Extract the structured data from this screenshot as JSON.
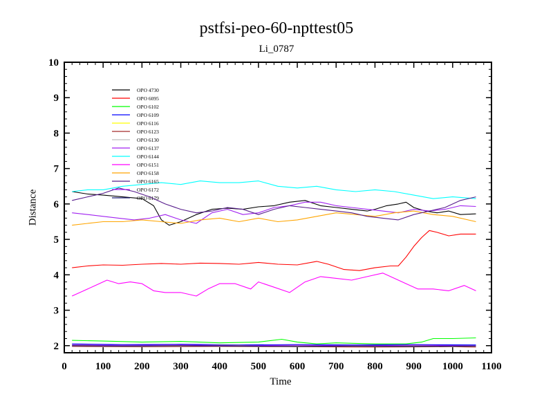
{
  "chart_data": {
    "type": "line",
    "title": "pstfsi-peo-60-npttest05",
    "subtitle": "Li_0787",
    "xlabel": "Time",
    "ylabel": "Distance",
    "xlim": [
      0,
      1100
    ],
    "ylim": [
      1.8,
      10
    ],
    "xticks": [
      0,
      100,
      200,
      300,
      400,
      500,
      600,
      700,
      800,
      900,
      1000,
      1100
    ],
    "yticks": [
      2,
      3,
      4,
      5,
      6,
      7,
      8,
      9,
      10
    ],
    "grid": false,
    "legend_position": "top-left",
    "series": [
      {
        "name": "OPO 4730",
        "color": "#000000",
        "x": [
          20,
          60,
          100,
          150,
          200,
          230,
          250,
          270,
          300,
          340,
          380,
          420,
          460,
          500,
          540,
          580,
          620,
          660,
          700,
          740,
          780,
          800,
          830,
          860,
          880,
          900,
          930,
          960,
          990,
          1020,
          1060
        ],
        "y": [
          6.35,
          6.28,
          6.25,
          6.2,
          6.15,
          5.95,
          5.55,
          5.4,
          5.5,
          5.7,
          5.85,
          5.88,
          5.85,
          5.92,
          5.95,
          6.05,
          6.1,
          5.95,
          5.9,
          5.85,
          5.8,
          5.85,
          5.95,
          6.0,
          6.05,
          5.9,
          5.8,
          5.75,
          5.8,
          5.7,
          5.72
        ]
      },
      {
        "name": "OPO 6095",
        "color": "#ff0000",
        "x": [
          20,
          60,
          100,
          150,
          200,
          250,
          300,
          350,
          400,
          450,
          500,
          550,
          600,
          650,
          680,
          720,
          760,
          800,
          840,
          860,
          880,
          900,
          920,
          940,
          960,
          990,
          1020,
          1060
        ],
        "y": [
          4.2,
          4.25,
          4.28,
          4.27,
          4.3,
          4.32,
          4.3,
          4.33,
          4.32,
          4.3,
          4.35,
          4.3,
          4.28,
          4.38,
          4.3,
          4.15,
          4.12,
          4.2,
          4.25,
          4.25,
          4.5,
          4.8,
          5.05,
          5.25,
          5.2,
          5.1,
          5.15,
          5.15
        ]
      },
      {
        "name": "OPO 6102",
        "color": "#00ff00",
        "x": [
          20,
          100,
          200,
          300,
          400,
          500,
          560,
          600,
          650,
          700,
          800,
          880,
          920,
          950,
          1000,
          1060
        ],
        "y": [
          2.15,
          2.13,
          2.1,
          2.12,
          2.08,
          2.1,
          2.18,
          2.1,
          2.05,
          2.08,
          2.05,
          2.05,
          2.1,
          2.2,
          2.2,
          2.22
        ]
      },
      {
        "name": "OPO 6109",
        "color": "#0000ff",
        "x": [
          20,
          150,
          300,
          450,
          600,
          750,
          900,
          1060
        ],
        "y": [
          2.05,
          2.03,
          2.04,
          2.02,
          2.03,
          2.02,
          2.03,
          2.02
        ]
      },
      {
        "name": "OPO 6116",
        "color": "#ffff00",
        "x": [
          20,
          200,
          400,
          600,
          800,
          1000,
          1060
        ],
        "y": [
          2.02,
          2.0,
          2.01,
          1.99,
          2.0,
          2.0,
          1.99
        ]
      },
      {
        "name": "OPO 6123",
        "color": "#a52a2a",
        "x": [
          20,
          200,
          400,
          600,
          800,
          1000,
          1060
        ],
        "y": [
          1.98,
          1.97,
          1.98,
          1.97,
          1.96,
          1.97,
          1.96
        ]
      },
      {
        "name": "OPO 6130",
        "color": "#bebebe",
        "x": [
          20,
          200,
          400,
          600,
          800,
          1000,
          1060
        ],
        "y": [
          2.0,
          1.99,
          2.0,
          1.98,
          1.99,
          1.98,
          1.99
        ]
      },
      {
        "name": "OPO 6137",
        "color": "#a020f0",
        "x": [
          20,
          60,
          100,
          140,
          180,
          220,
          260,
          300,
          340,
          380,
          420,
          460,
          500,
          540,
          580,
          620,
          660,
          700,
          740,
          780,
          820,
          860,
          900,
          940,
          980,
          1020,
          1060
        ],
        "y": [
          5.75,
          5.7,
          5.65,
          5.6,
          5.55,
          5.6,
          5.7,
          5.55,
          5.45,
          5.75,
          5.85,
          5.7,
          5.75,
          5.9,
          5.95,
          6.05,
          6.05,
          5.95,
          5.9,
          5.85,
          5.8,
          5.75,
          5.85,
          5.8,
          5.85,
          5.95,
          5.93
        ]
      },
      {
        "name": "OPO 6144",
        "color": "#00ffff",
        "x": [
          20,
          60,
          100,
          150,
          200,
          250,
          300,
          350,
          400,
          450,
          500,
          550,
          600,
          650,
          700,
          750,
          800,
          850,
          900,
          950,
          1000,
          1060
        ],
        "y": [
          6.35,
          6.4,
          6.4,
          6.5,
          6.55,
          6.6,
          6.55,
          6.65,
          6.6,
          6.6,
          6.65,
          6.5,
          6.45,
          6.5,
          6.4,
          6.35,
          6.4,
          6.35,
          6.25,
          6.15,
          6.2,
          6.15
        ]
      },
      {
        "name": "OPO 6151",
        "color": "#ff00ff",
        "x": [
          20,
          50,
          80,
          110,
          140,
          170,
          200,
          230,
          260,
          300,
          340,
          370,
          400,
          440,
          480,
          500,
          540,
          580,
          620,
          660,
          700,
          740,
          780,
          820,
          850,
          880,
          910,
          950,
          990,
          1030,
          1060
        ],
        "y": [
          3.4,
          3.55,
          3.7,
          3.85,
          3.75,
          3.8,
          3.75,
          3.55,
          3.5,
          3.5,
          3.4,
          3.6,
          3.75,
          3.75,
          3.6,
          3.8,
          3.65,
          3.5,
          3.8,
          3.95,
          3.9,
          3.85,
          3.95,
          4.05,
          3.9,
          3.75,
          3.6,
          3.6,
          3.55,
          3.7,
          3.55
        ]
      },
      {
        "name": "OPO 6158",
        "color": "#ffa500",
        "x": [
          20,
          60,
          100,
          150,
          200,
          250,
          300,
          350,
          400,
          450,
          500,
          550,
          600,
          650,
          700,
          750,
          800,
          850,
          900,
          950,
          1000,
          1060
        ],
        "y": [
          5.4,
          5.45,
          5.5,
          5.5,
          5.55,
          5.5,
          5.45,
          5.55,
          5.6,
          5.5,
          5.6,
          5.5,
          5.55,
          5.65,
          5.75,
          5.7,
          5.65,
          5.75,
          5.8,
          5.7,
          5.65,
          5.5
        ]
      },
      {
        "name": "OPO 6165",
        "color": "#551a8b",
        "x": [
          20,
          60,
          100,
          140,
          180,
          220,
          260,
          300,
          340,
          380,
          420,
          460,
          500,
          540,
          580,
          620,
          660,
          700,
          740,
          780,
          820,
          860,
          900,
          940,
          980,
          1020,
          1060
        ],
        "y": [
          6.1,
          6.2,
          6.3,
          6.45,
          6.35,
          6.2,
          6.0,
          5.85,
          5.75,
          5.8,
          5.9,
          5.85,
          5.7,
          5.85,
          5.95,
          5.9,
          5.85,
          5.8,
          5.75,
          5.65,
          5.6,
          5.55,
          5.7,
          5.8,
          5.9,
          6.1,
          6.2
        ]
      },
      {
        "name": "OPO 6172",
        "color": "#a020f0",
        "x": [
          20,
          150,
          300,
          450,
          600,
          750,
          900,
          1060
        ],
        "y": [
          2.02,
          2.01,
          2.02,
          2.0,
          2.01,
          2.0,
          2.01,
          2.0
        ]
      },
      {
        "name": "OPO 6179",
        "color": "#191970",
        "x": [
          20,
          150,
          300,
          450,
          600,
          750,
          900,
          1060
        ],
        "y": [
          2.0,
          1.99,
          2.0,
          1.99,
          1.98,
          1.99,
          1.98,
          1.99
        ]
      }
    ]
  }
}
